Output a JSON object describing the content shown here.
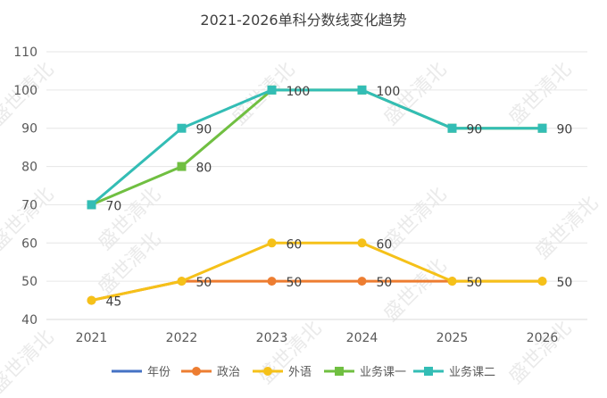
{
  "chart_data": {
    "type": "line",
    "title": "2021-2026单科分数线变化趋势",
    "categories": [
      "2021",
      "2022",
      "2023",
      "2024",
      "2025",
      "2026"
    ],
    "ylim": [
      40,
      110
    ],
    "yticks": [
      40,
      50,
      60,
      70,
      80,
      90,
      100,
      110
    ],
    "grid": true,
    "legend_position": "bottom",
    "series": [
      {
        "name": "年份",
        "color": "#4472c4",
        "marker": "line",
        "values": [
          null,
          null,
          null,
          null,
          null,
          null
        ],
        "labels": []
      },
      {
        "name": "政治",
        "color": "#ed7d31",
        "marker": "circle",
        "values": [
          45,
          50,
          50,
          50,
          50,
          50
        ],
        "labels": [
          "",
          "",
          "50",
          "50",
          "",
          ""
        ]
      },
      {
        "name": "外语",
        "color": "#f5c119",
        "marker": "circle",
        "values": [
          45,
          50,
          60,
          60,
          50,
          50
        ],
        "labels": [
          "45",
          "50",
          "60",
          "60",
          "50",
          "50"
        ]
      },
      {
        "name": "业务课一",
        "color": "#70bf41",
        "marker": "square",
        "values": [
          70,
          80,
          100,
          100,
          90,
          90
        ],
        "labels": [
          "",
          "80",
          "",
          "",
          "",
          ""
        ]
      },
      {
        "name": "业务课二",
        "color": "#33bdb5",
        "marker": "square",
        "values": [
          70,
          90,
          100,
          100,
          90,
          90
        ],
        "labels": [
          "70",
          "90",
          "100",
          "100",
          "90",
          "90"
        ]
      }
    ]
  },
  "watermark_text": "盛世清北"
}
